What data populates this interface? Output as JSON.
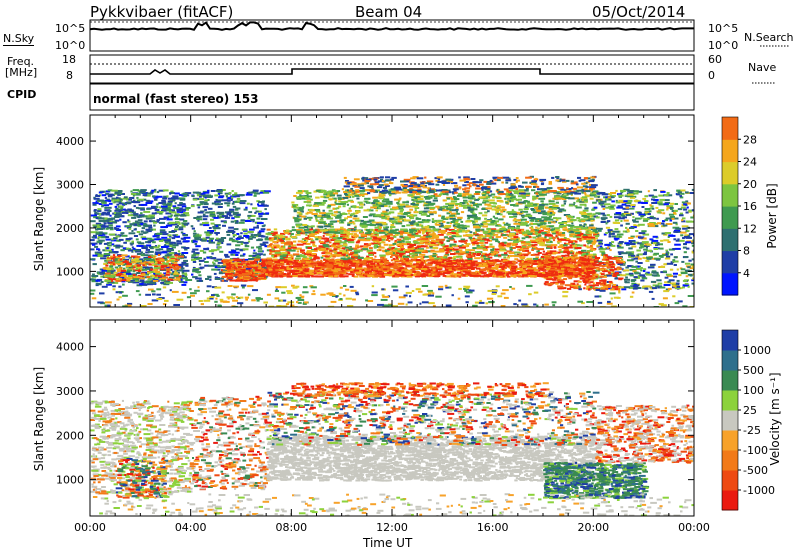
{
  "header": {
    "station": "Pykkvibaer (fitACF)",
    "beam": "Beam 04",
    "date": "05/Oct/2014"
  },
  "noise_panel": {
    "left_label": "N.Sky",
    "right_label": "N.Search",
    "left_ticks": [
      "10^5",
      "10^0"
    ],
    "right_ticks": [
      "10^5",
      "10^0"
    ]
  },
  "freq_panel": {
    "left_label_line1": "Freq.",
    "left_label_line2": "[MHz]",
    "right_label": "Nave",
    "left_ticks": [
      "18",
      "8"
    ],
    "right_ticks": [
      "60",
      "0"
    ]
  },
  "cpid": {
    "label": "CPID",
    "text": "normal (fast stereo) 153"
  },
  "x_axis": {
    "label": "Time UT",
    "ticks": [
      "00:00",
      "04:00",
      "08:00",
      "12:00",
      "16:00",
      "20:00",
      "00:00"
    ]
  },
  "chart_data": [
    {
      "type": "heatmap",
      "name": "power",
      "ylabel": "Slant Range [km]",
      "yticks": [
        "4000",
        "3000",
        "2000",
        "1000"
      ],
      "ylim": [
        180,
        4600
      ],
      "xlim_hours": [
        0,
        24
      ],
      "colorbar_label": "Power [dB]",
      "colorbar_ticks": [
        "28",
        "24",
        "20",
        "16",
        "12",
        "8",
        "4"
      ],
      "colors": [
        "#0015ff",
        "#1f3ea6",
        "#2e6f70",
        "#3f9a50",
        "#7dc540",
        "#dccc2a",
        "#f5a61c",
        "#f26b16",
        "#ef2b10"
      ]
    },
    {
      "type": "heatmap",
      "name": "velocity",
      "ylabel": "Slant Range [km]",
      "yticks": [
        "4000",
        "3000",
        "2000",
        "1000"
      ],
      "ylim": [
        180,
        4600
      ],
      "xlim_hours": [
        0,
        24
      ],
      "colorbar_label": "Velocity [m s⁻¹]",
      "colorbar_ticks": [
        "1000",
        "500",
        "100",
        "25",
        "-25",
        "-100",
        "-500",
        "-1000"
      ],
      "colors": [
        "#1f3ea6",
        "#2e6f8c",
        "#3a8a52",
        "#8cd23c",
        "#c8c8c0",
        "#f7a22a",
        "#f27a18",
        "#ee4a12",
        "#ea1a10"
      ]
    }
  ]
}
